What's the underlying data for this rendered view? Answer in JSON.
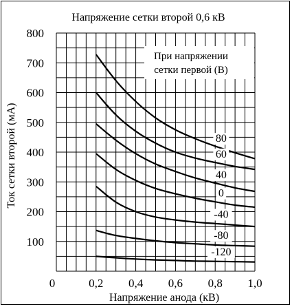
{
  "chart_data": {
    "type": "line",
    "title": "Напряжение сетки второй 0,6 кВ",
    "xlabel": "Напряжение анода (кВ)",
    "ylabel": "Ток сетки второй (мА)",
    "xlim": [
      0,
      1.0
    ],
    "ylim": [
      0,
      800
    ],
    "x_ticks": [
      0,
      0.2,
      0.4,
      0.6,
      0.8,
      1.0
    ],
    "x_tick_labels": [
      "0",
      "0,2",
      "0,4",
      "0,6",
      "0,8",
      "1,0"
    ],
    "y_ticks": [
      100,
      200,
      300,
      400,
      500,
      600,
      700,
      800
    ],
    "y_tick_labels": [
      "100",
      "200",
      "300",
      "400",
      "500",
      "600",
      "700",
      "800"
    ],
    "grid": true,
    "legend_title": [
      "При напряжении",
      "сетки первой (В)"
    ],
    "legend_placement": "top-right",
    "series": [
      {
        "name": "80",
        "x": [
          0.2,
          0.3,
          0.4,
          0.5,
          0.6,
          0.7,
          0.8,
          0.9,
          1.0
        ],
        "y": [
          728,
          640,
          570,
          515,
          475,
          445,
          420,
          398,
          378
        ]
      },
      {
        "name": "60",
        "x": [
          0.2,
          0.3,
          0.4,
          0.5,
          0.6,
          0.7,
          0.8,
          0.9,
          1.0
        ],
        "y": [
          600,
          525,
          470,
          430,
          400,
          380,
          365,
          352,
          342
        ]
      },
      {
        "name": "40",
        "x": [
          0.2,
          0.3,
          0.4,
          0.5,
          0.6,
          0.7,
          0.8,
          0.9,
          1.0
        ],
        "y": [
          495,
          440,
          395,
          360,
          335,
          313,
          296,
          280,
          268
        ]
      },
      {
        "name": "0",
        "x": [
          0.2,
          0.3,
          0.4,
          0.5,
          0.6,
          0.7,
          0.8,
          0.9,
          1.0
        ],
        "y": [
          395,
          342,
          305,
          278,
          260,
          245,
          233,
          222,
          215
        ]
      },
      {
        "name": "-40",
        "x": [
          0.2,
          0.3,
          0.4,
          0.5,
          0.6,
          0.7,
          0.8,
          0.9,
          1.0
        ],
        "y": [
          285,
          232,
          200,
          182,
          172,
          165,
          160,
          155,
          150
        ]
      },
      {
        "name": "-80",
        "x": [
          0.2,
          0.3,
          0.4,
          0.5,
          0.6,
          0.7,
          0.8,
          0.9,
          1.0
        ],
        "y": [
          137,
          120,
          110,
          102,
          96,
          92,
          88,
          86,
          84
        ]
      },
      {
        "name": "-120",
        "x": [
          0.2,
          0.3,
          0.4,
          0.5,
          0.6,
          0.7,
          0.8,
          0.9,
          1.0
        ],
        "y": [
          50,
          45,
          41,
          38,
          36,
          34,
          33,
          32,
          31
        ]
      }
    ]
  }
}
